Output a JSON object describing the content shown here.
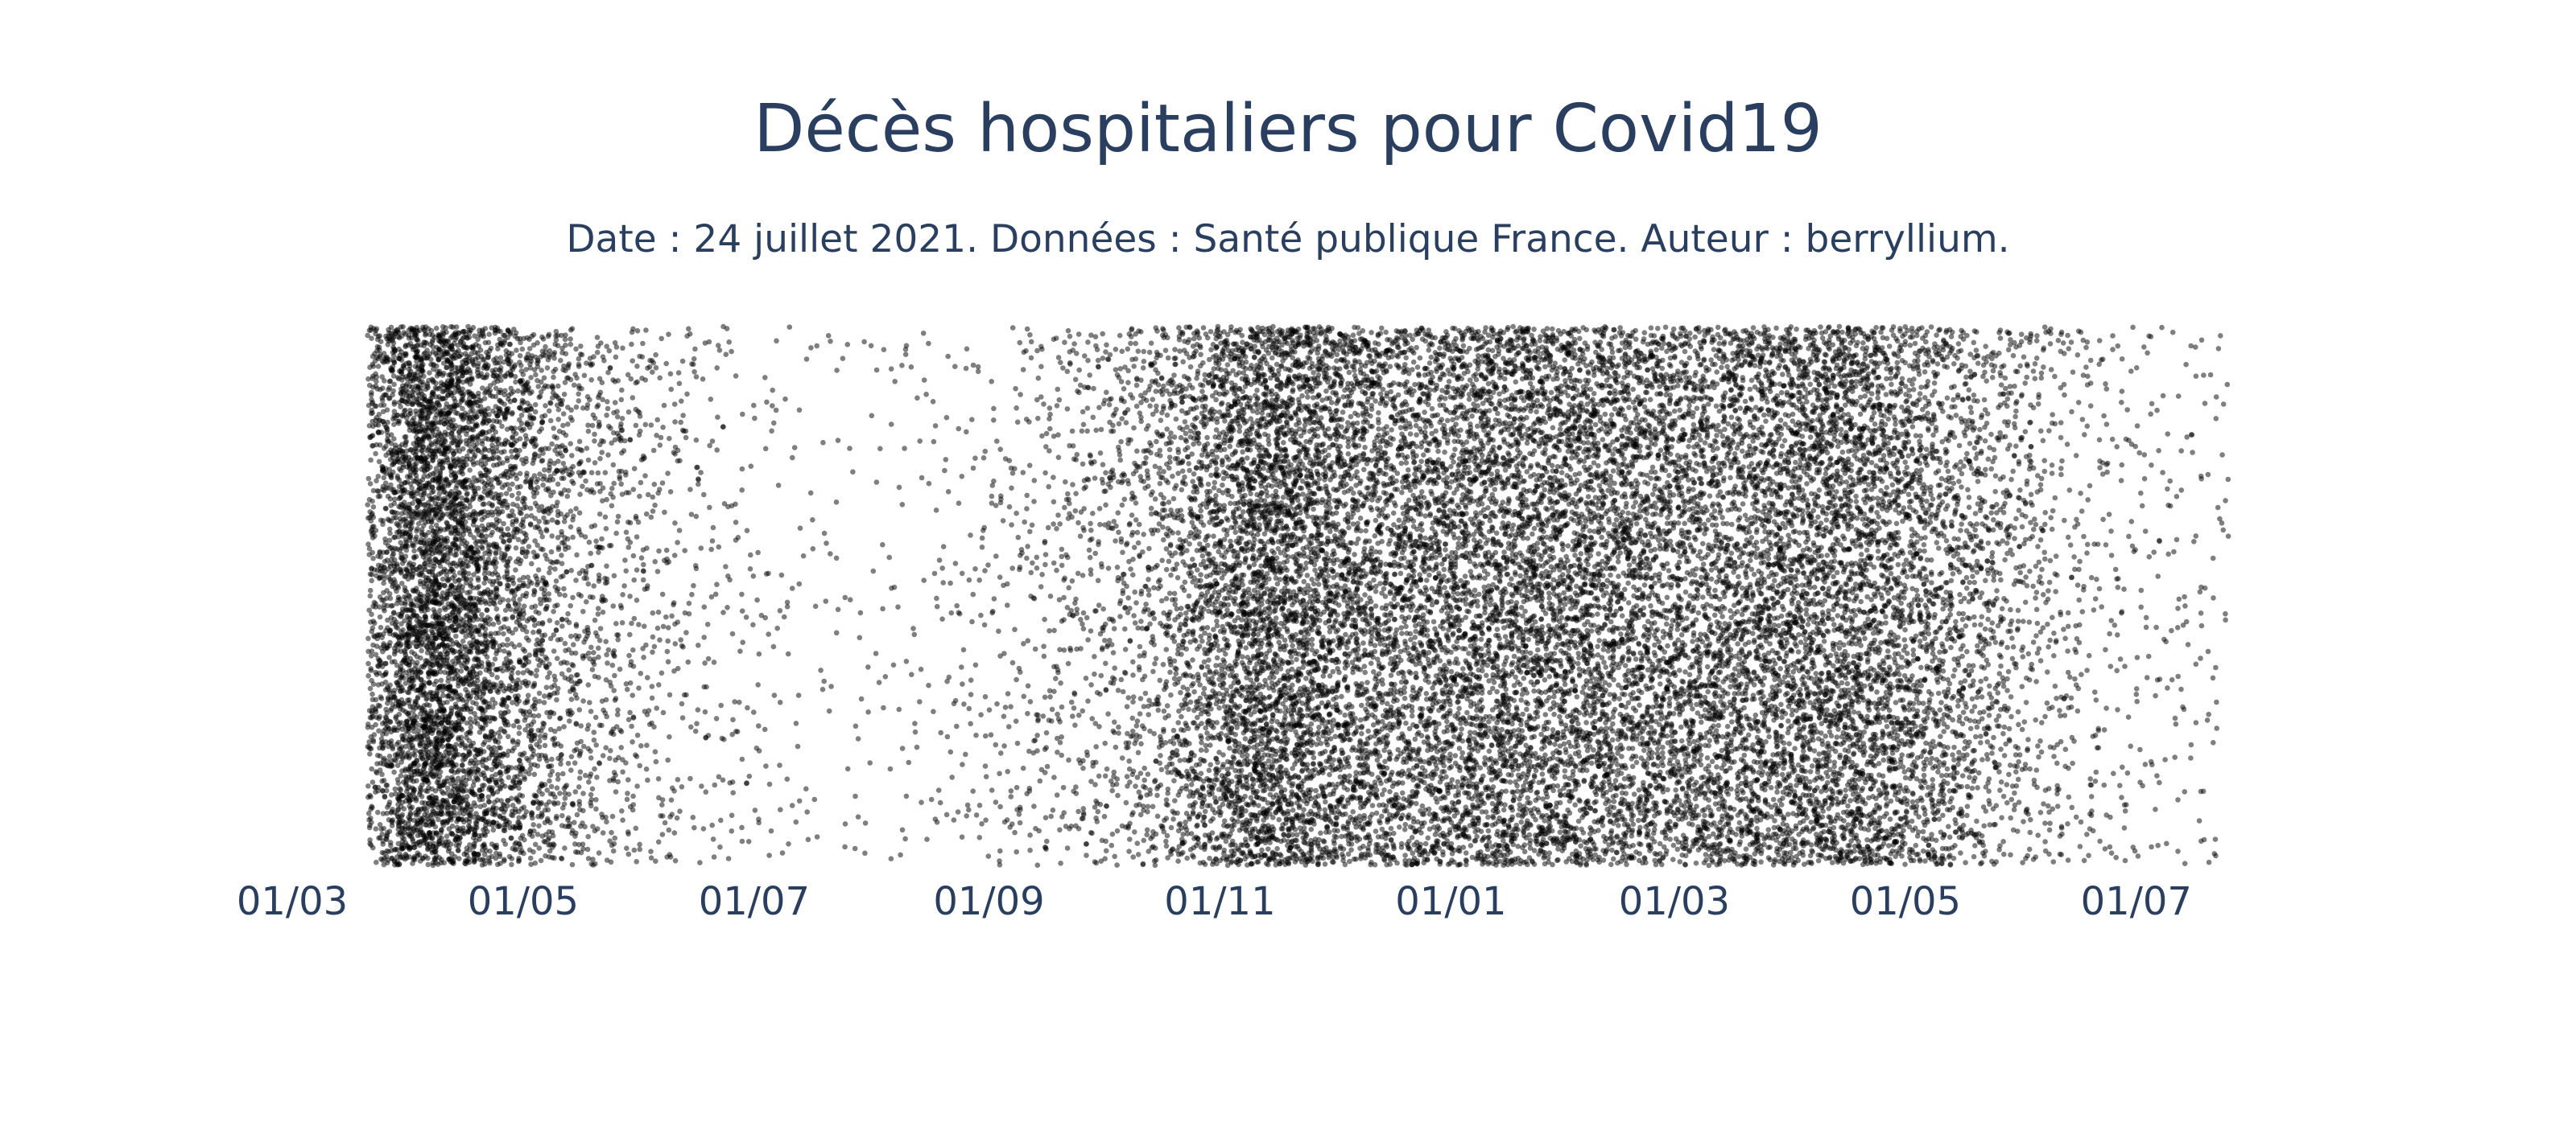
{
  "chart_data": {
    "type": "scatter",
    "title": "Décès hospitaliers pour Covid19",
    "subtitle": "Date : 24 juillet 2021. Données : Santé publique France. Auteur : berryllium.",
    "xlabel": "",
    "ylabel": "",
    "x_type": "date",
    "xlim": [
      "2020-03-01",
      "2021-07-24"
    ],
    "x_ticks": [
      {
        "date": "2020-03-01",
        "label": "01/03"
      },
      {
        "date": "2020-05-01",
        "label": "01/05"
      },
      {
        "date": "2020-07-01",
        "label": "01/07"
      },
      {
        "date": "2020-09-01",
        "label": "01/09"
      },
      {
        "date": "2020-11-01",
        "label": "01/11"
      },
      {
        "date": "2021-01-01",
        "label": "01/01"
      },
      {
        "date": "2021-03-01",
        "label": "01/03"
      },
      {
        "date": "2021-05-01",
        "label": "01/05"
      },
      {
        "date": "2021-07-01",
        "label": "01/07"
      }
    ],
    "y_axis_visible": false,
    "grid": false,
    "marker_color": "#000000",
    "series": [
      {
        "points": [
          {
            "date": "2020-03-19",
            "deaths": 70
          },
          {
            "date": "2020-04-01",
            "deaths": 500
          },
          {
            "date": "2020-04-08",
            "deaths": 560
          },
          {
            "date": "2020-04-15",
            "deaths": 460
          },
          {
            "date": "2020-04-22",
            "deaths": 330
          },
          {
            "date": "2020-05-01",
            "deaths": 230
          },
          {
            "date": "2020-05-15",
            "deaths": 110
          },
          {
            "date": "2020-06-01",
            "deaths": 55
          },
          {
            "date": "2020-06-15",
            "deaths": 30
          },
          {
            "date": "2020-07-01",
            "deaths": 18
          },
          {
            "date": "2020-07-15",
            "deaths": 10
          },
          {
            "date": "2020-08-01",
            "deaths": 10
          },
          {
            "date": "2020-08-15",
            "deaths": 14
          },
          {
            "date": "2020-09-01",
            "deaths": 25
          },
          {
            "date": "2020-09-15",
            "deaths": 45
          },
          {
            "date": "2020-10-01",
            "deaths": 70
          },
          {
            "date": "2020-10-15",
            "deaths": 120
          },
          {
            "date": "2020-11-01",
            "deaths": 280
          },
          {
            "date": "2020-11-10",
            "deaths": 400
          },
          {
            "date": "2020-11-20",
            "deaths": 380
          },
          {
            "date": "2020-12-01",
            "deaths": 300
          },
          {
            "date": "2020-12-15",
            "deaths": 260
          },
          {
            "date": "2021-01-01",
            "deaths": 290
          },
          {
            "date": "2021-01-15",
            "deaths": 310
          },
          {
            "date": "2021-02-01",
            "deaths": 300
          },
          {
            "date": "2021-02-15",
            "deaths": 280
          },
          {
            "date": "2021-03-01",
            "deaths": 260
          },
          {
            "date": "2021-03-15",
            "deaths": 270
          },
          {
            "date": "2021-04-01",
            "deaths": 300
          },
          {
            "date": "2021-04-15",
            "deaths": 320
          },
          {
            "date": "2021-05-01",
            "deaths": 240
          },
          {
            "date": "2021-05-15",
            "deaths": 160
          },
          {
            "date": "2021-06-01",
            "deaths": 80
          },
          {
            "date": "2021-06-15",
            "deaths": 40
          },
          {
            "date": "2021-07-01",
            "deaths": 22
          },
          {
            "date": "2021-07-15",
            "deaths": 18
          },
          {
            "date": "2021-07-24",
            "deaths": 20
          }
        ]
      }
    ]
  }
}
